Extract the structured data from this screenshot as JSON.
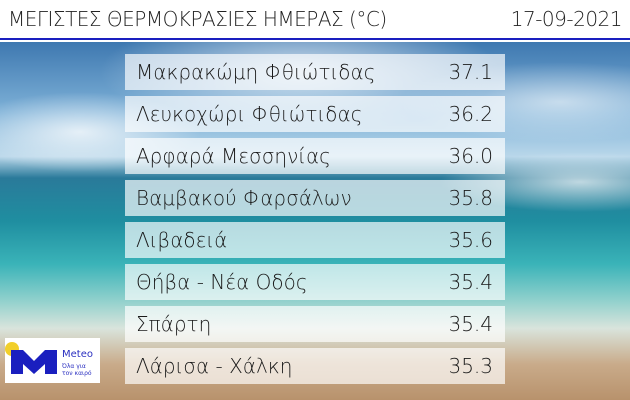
{
  "header": {
    "title": "ΜΕΓΙΣΤΕΣ ΘΕΡΜΟΚΡΑΣΙΕΣ ΗΜΕΡΑΣ (°C)",
    "date": "17-09-2021"
  },
  "rows": [
    {
      "location": "Μακρακώμη Φθιώτιδας",
      "temp": "37.1"
    },
    {
      "location": "Λευκοχώρι Φθιώτιδας",
      "temp": "36.2"
    },
    {
      "location": "Αρφαρά Μεσσηνίας",
      "temp": "36.0"
    },
    {
      "location": "Βαμβακού Φαρσάλων",
      "temp": "35.8"
    },
    {
      "location": "Λιβαδειά",
      "temp": "35.6"
    },
    {
      "location": "Θήβα - Νέα Οδός",
      "temp": "35.4"
    },
    {
      "location": "Σπάρτη",
      "temp": "35.4"
    },
    {
      "location": "Λάρισα - Χάλκη",
      "temp": "35.3"
    }
  ],
  "logo": {
    "brand": "Meteo",
    "tagline_1": "Όλα για",
    "tagline_2": "τον καιρό"
  },
  "colors": {
    "accent": "#1a1fbf",
    "logo_yellow": "#f2cf2a"
  }
}
